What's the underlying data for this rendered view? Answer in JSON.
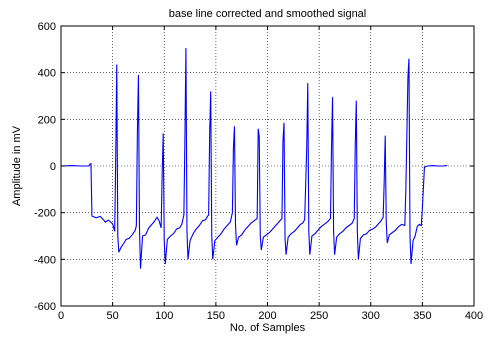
{
  "chart_data": {
    "type": "line",
    "title": "base line corrected and smoothed signal",
    "xlabel": "No. of Samples",
    "ylabel": "Amplitude in mV",
    "xlim": [
      0,
      400
    ],
    "ylim": [
      -600,
      600
    ],
    "xticks": [
      0,
      50,
      100,
      150,
      200,
      250,
      300,
      350,
      400
    ],
    "yticks": [
      -600,
      -400,
      -200,
      0,
      200,
      400,
      600
    ],
    "grid": true,
    "colors": {
      "line": "#0000ff",
      "grid": "#000000",
      "axes": "#000000"
    },
    "series": [
      {
        "points": [
          [
            0,
            0
          ],
          [
            10,
            2
          ],
          [
            20,
            0
          ],
          [
            27,
            0
          ],
          [
            28,
            8
          ],
          [
            29,
            10
          ],
          [
            30,
            -215
          ],
          [
            34,
            -222
          ],
          [
            38,
            -216
          ],
          [
            40,
            -225
          ],
          [
            43,
            -240
          ],
          [
            46,
            -232
          ],
          [
            50,
            -248
          ],
          [
            52,
            -280
          ],
          [
            53,
            30
          ],
          [
            54,
            435
          ],
          [
            55,
            -300
          ],
          [
            56,
            -370
          ],
          [
            58,
            -350
          ],
          [
            61,
            -330
          ],
          [
            63,
            -315
          ],
          [
            66,
            -310
          ],
          [
            69,
            -295
          ],
          [
            72,
            -275
          ],
          [
            73,
            -255
          ],
          [
            74,
            150
          ],
          [
            75,
            390
          ],
          [
            76,
            -260
          ],
          [
            77,
            -440
          ],
          [
            79,
            -300
          ],
          [
            82,
            -295
          ],
          [
            85,
            -265
          ],
          [
            88,
            -250
          ],
          [
            90,
            -240
          ],
          [
            93,
            -220
          ],
          [
            95,
            -235
          ],
          [
            97,
            -265
          ],
          [
            98,
            -30
          ],
          [
            99,
            140
          ],
          [
            100,
            -320
          ],
          [
            101,
            -420
          ],
          [
            103,
            -315
          ],
          [
            106,
            -300
          ],
          [
            109,
            -290
          ],
          [
            112,
            -270
          ],
          [
            115,
            -265
          ],
          [
            117,
            -250
          ],
          [
            119,
            -210
          ],
          [
            120,
            110
          ],
          [
            121,
            505
          ],
          [
            122,
            -280
          ],
          [
            123,
            -400
          ],
          [
            125,
            -320
          ],
          [
            128,
            -290
          ],
          [
            131,
            -270
          ],
          [
            134,
            -255
          ],
          [
            137,
            -235
          ],
          [
            140,
            -230
          ],
          [
            142,
            -215
          ],
          [
            143,
            -210
          ],
          [
            144,
            140
          ],
          [
            145,
            320
          ],
          [
            146,
            -300
          ],
          [
            147,
            -400
          ],
          [
            149,
            -320
          ],
          [
            152,
            -305
          ],
          [
            155,
            -290
          ],
          [
            158,
            -270
          ],
          [
            161,
            -255
          ],
          [
            164,
            -240
          ],
          [
            166,
            -200
          ],
          [
            167,
            80
          ],
          [
            168,
            170
          ],
          [
            169,
            -250
          ],
          [
            170,
            -340
          ],
          [
            172,
            -305
          ],
          [
            175,
            -295
          ],
          [
            178,
            -275
          ],
          [
            181,
            -260
          ],
          [
            184,
            -245
          ],
          [
            187,
            -235
          ],
          [
            190,
            -225
          ],
          [
            191,
            160
          ],
          [
            192,
            125
          ],
          [
            193,
            -300
          ],
          [
            194,
            -360
          ],
          [
            196,
            -305
          ],
          [
            199,
            -295
          ],
          [
            202,
            -285
          ],
          [
            205,
            -270
          ],
          [
            208,
            -255
          ],
          [
            211,
            -240
          ],
          [
            214,
            -225
          ],
          [
            215,
            110
          ],
          [
            216,
            185
          ],
          [
            217,
            -310
          ],
          [
            218,
            -380
          ],
          [
            220,
            -305
          ],
          [
            223,
            -290
          ],
          [
            226,
            -280
          ],
          [
            229,
            -265
          ],
          [
            232,
            -250
          ],
          [
            234,
            -245
          ],
          [
            236,
            -230
          ],
          [
            238,
            80
          ],
          [
            239,
            355
          ],
          [
            240,
            -280
          ],
          [
            241,
            -380
          ],
          [
            243,
            -300
          ],
          [
            246,
            -290
          ],
          [
            249,
            -275
          ],
          [
            252,
            -260
          ],
          [
            255,
            -250
          ],
          [
            258,
            -240
          ],
          [
            261,
            -225
          ],
          [
            262,
            80
          ],
          [
            263,
            295
          ],
          [
            264,
            -280
          ],
          [
            265,
            -380
          ],
          [
            267,
            -305
          ],
          [
            270,
            -290
          ],
          [
            273,
            -280
          ],
          [
            276,
            -265
          ],
          [
            279,
            -255
          ],
          [
            282,
            -245
          ],
          [
            284,
            -225
          ],
          [
            285,
            90
          ],
          [
            286,
            280
          ],
          [
            287,
            -280
          ],
          [
            288,
            -400
          ],
          [
            290,
            -310
          ],
          [
            293,
            -295
          ],
          [
            296,
            -290
          ],
          [
            299,
            -275
          ],
          [
            302,
            -270
          ],
          [
            305,
            -260
          ],
          [
            308,
            -245
          ],
          [
            310,
            -235
          ],
          [
            312,
            -220
          ],
          [
            313,
            -70
          ],
          [
            314,
            130
          ],
          [
            315,
            -240
          ],
          [
            316,
            -330
          ],
          [
            318,
            -295
          ],
          [
            321,
            -285
          ],
          [
            324,
            -275
          ],
          [
            327,
            -260
          ],
          [
            330,
            -250
          ],
          [
            333,
            -255
          ],
          [
            334,
            -100
          ],
          [
            336,
            380
          ],
          [
            337,
            460
          ],
          [
            338,
            -300
          ],
          [
            339,
            -420
          ],
          [
            341,
            -320
          ],
          [
            343,
            -300
          ],
          [
            345,
            -260
          ],
          [
            347,
            -250
          ],
          [
            349,
            -255
          ],
          [
            350,
            -180
          ],
          [
            352,
            -5
          ],
          [
            355,
            0
          ],
          [
            360,
            2
          ],
          [
            365,
            0
          ],
          [
            370,
            0
          ],
          [
            374,
            2
          ]
        ]
      }
    ]
  }
}
